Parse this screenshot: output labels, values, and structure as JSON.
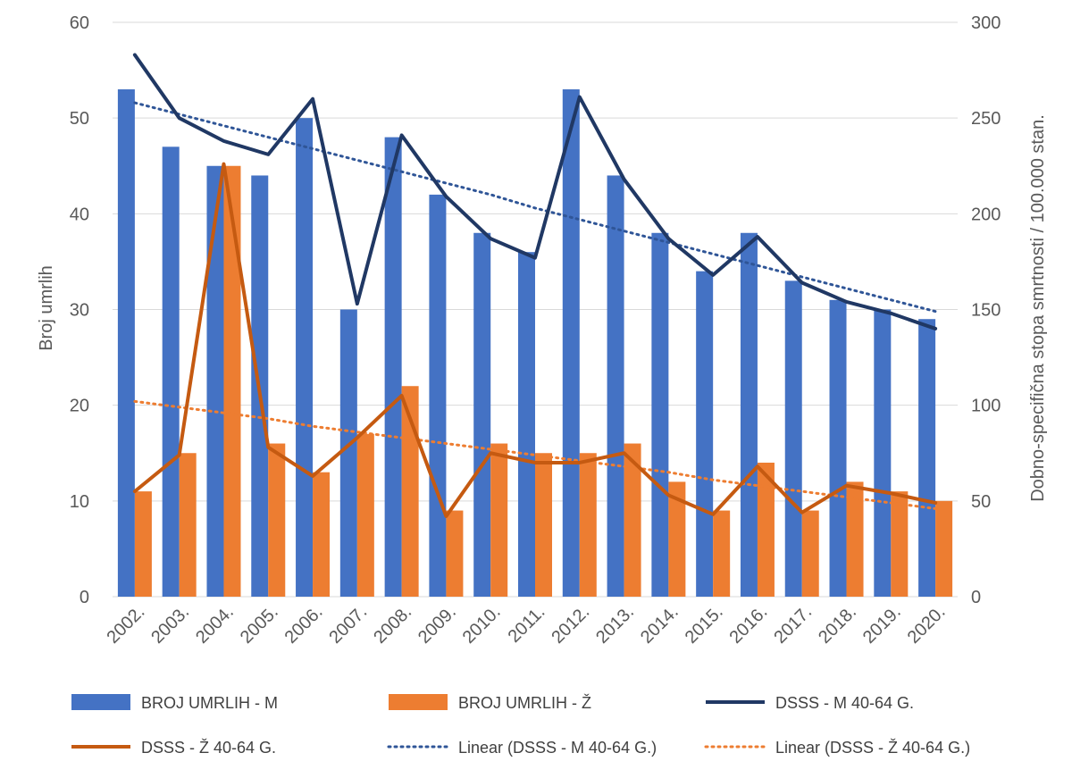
{
  "chart_data": {
    "type": "bar",
    "categories": [
      "2002.",
      "2003.",
      "2004.",
      "2005.",
      "2006.",
      "2007.",
      "2008.",
      "2009.",
      "2010.",
      "2011.",
      "2012.",
      "2013.",
      "2014.",
      "2015.",
      "2016.",
      "2017.",
      "2018.",
      "2019.",
      "2020."
    ],
    "ylabel": "Broj umrlih",
    "y2label": "Dobno-specifična stopa smrtnosti / 100.000 stan.",
    "ylim": [
      0,
      60
    ],
    "y2lim": [
      0,
      300
    ],
    "yticks": [
      "0",
      "10",
      "20",
      "30",
      "40",
      "50",
      "60"
    ],
    "y2ticks": [
      "0",
      "50",
      "100",
      "150",
      "200",
      "250",
      "300"
    ],
    "grid": true,
    "legend_position": "bottom",
    "series": [
      {
        "name": "BROJ UMRLIH - M",
        "kind": "bar",
        "axis": "left",
        "color": "#4472C4",
        "values": [
          53,
          47,
          45,
          44,
          50,
          30,
          48,
          42,
          38,
          36,
          53,
          44,
          38,
          34,
          38,
          33,
          31,
          30,
          29
        ]
      },
      {
        "name": "BROJ UMRLIH - Ž",
        "kind": "bar",
        "axis": "left",
        "color": "#ED7D31",
        "values": [
          11,
          15,
          45,
          16,
          13,
          17,
          22,
          9,
          16,
          15,
          15,
          16,
          12,
          9,
          14,
          9,
          12,
          11,
          10
        ]
      },
      {
        "name": "DSSS - M 40-64 G.",
        "kind": "line",
        "axis": "right",
        "color": "#203864",
        "values": [
          283,
          250,
          238,
          231,
          260,
          153,
          241,
          209,
          187,
          177,
          261,
          218,
          187,
          168,
          188,
          164,
          154,
          148,
          140
        ]
      },
      {
        "name": "DSSS - Ž 40-64 G.",
        "kind": "line",
        "axis": "right",
        "color": "#C55A11",
        "values": [
          55,
          74,
          226,
          78,
          63,
          83,
          105,
          42,
          75,
          70,
          70,
          75,
          53,
          43,
          68,
          44,
          58,
          54,
          49
        ]
      },
      {
        "name": "Linear (DSSS - M 40-64 G.)",
        "kind": "trendline",
        "axis": "right",
        "color": "#2F5597",
        "values": [
          258,
          252,
          246,
          240,
          234,
          228,
          222,
          216,
          210,
          203,
          197,
          191,
          185,
          179,
          173,
          167,
          161,
          155,
          149
        ]
      },
      {
        "name": "Linear (DSSS - Ž 40-64 G.)",
        "kind": "trendline",
        "axis": "right",
        "color": "#ED7D31",
        "values": [
          102,
          99,
          96,
          93,
          89,
          86,
          83,
          80,
          77,
          74,
          71,
          68,
          65,
          61,
          58,
          55,
          52,
          49,
          46
        ]
      }
    ]
  }
}
